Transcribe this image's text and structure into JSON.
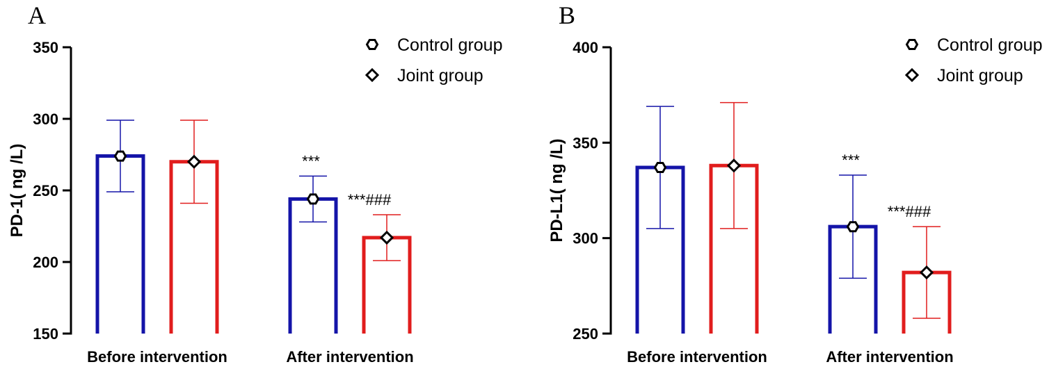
{
  "chart_data": [
    {
      "type": "bar",
      "panel_label": "A",
      "ylabel": "PD-1( ng /L)",
      "xlabel": "",
      "ylim": [
        150,
        350
      ],
      "yticks": [
        150,
        200,
        250,
        300,
        350
      ],
      "categories": [
        "Before intervention",
        "After intervention"
      ],
      "series": [
        {
          "name": "Control group",
          "marker": "hexagon",
          "color": "#1414a8",
          "values": [
            274,
            244
          ],
          "error": [
            25,
            16
          ]
        },
        {
          "name": "Joint group",
          "marker": "diamond",
          "color": "#e11d1d",
          "values": [
            270,
            217
          ],
          "error": [
            29,
            16
          ]
        }
      ],
      "annotations": [
        {
          "category": "After intervention",
          "series": "Control group",
          "text": "***"
        },
        {
          "category": "After intervention",
          "series": "Joint group",
          "text": "***###"
        }
      ],
      "legend": "top-right"
    },
    {
      "type": "bar",
      "panel_label": "B",
      "ylabel": "PD-L1( ng /L)",
      "xlabel": "",
      "ylim": [
        250,
        400
      ],
      "yticks": [
        250,
        300,
        350,
        400
      ],
      "categories": [
        "Before intervention",
        "After intervention"
      ],
      "series": [
        {
          "name": "Control group",
          "marker": "hexagon",
          "color": "#1414a8",
          "values": [
            337,
            306
          ],
          "error": [
            32,
            27
          ]
        },
        {
          "name": "Joint group",
          "marker": "diamond",
          "color": "#e11d1d",
          "values": [
            338,
            282
          ],
          "error": [
            33,
            24
          ]
        }
      ],
      "annotations": [
        {
          "category": "After intervention",
          "series": "Control group",
          "text": "***"
        },
        {
          "category": "After intervention",
          "series": "Joint group",
          "text": "***###"
        }
      ],
      "legend": "top-right"
    }
  ]
}
